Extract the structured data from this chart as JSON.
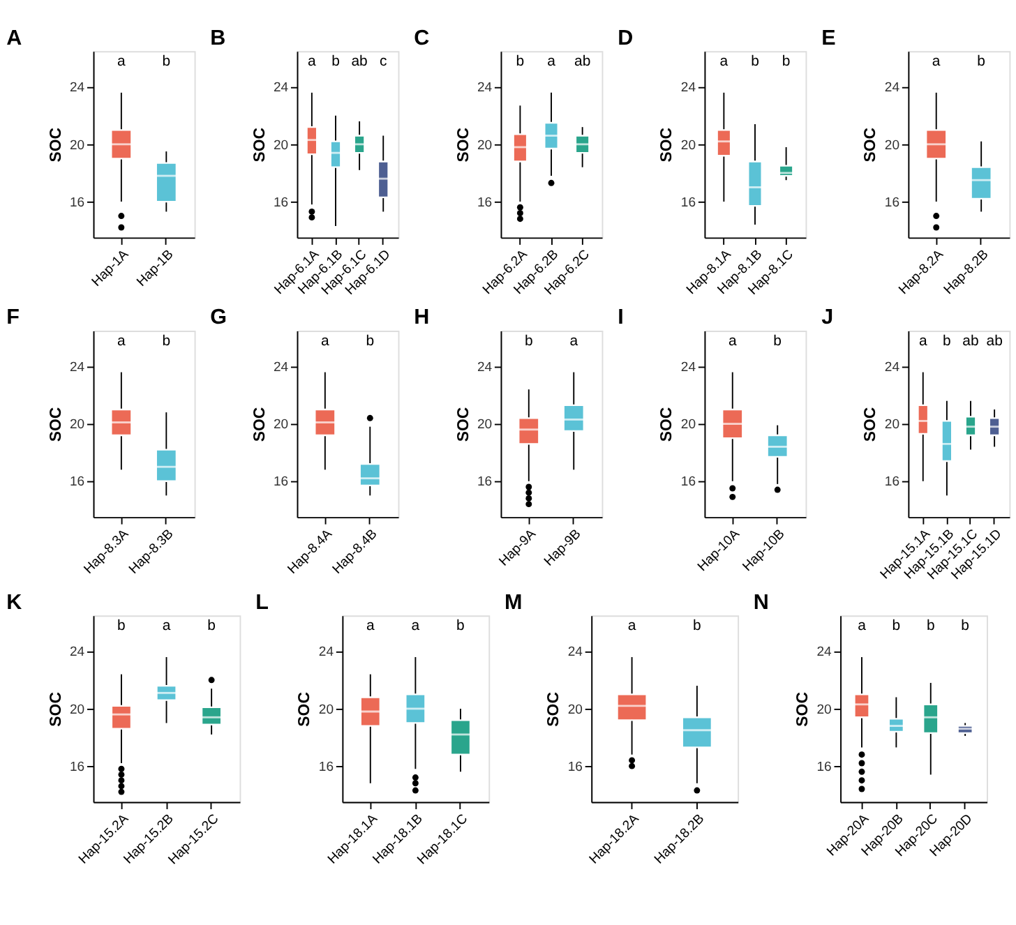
{
  "chart_data": [
    {
      "type": "box",
      "title": "A",
      "ylabel": "SOC",
      "ylim": [
        13.5,
        26.5
      ],
      "yticks": [
        16,
        20,
        24
      ],
      "grid": false,
      "categories": [
        "Hap-1A",
        "Hap-1B"
      ],
      "colors": [
        "#ec6a56",
        "#5bc2d6"
      ],
      "boxes": [
        {
          "low": 16,
          "q1": 19,
          "median": 20,
          "q3": 21,
          "high": 23.6,
          "outliers": [
            15,
            14.2
          ]
        },
        {
          "low": 15.3,
          "q1": 16,
          "median": 17.8,
          "q3": 18.7,
          "high": 19.5
        }
      ],
      "annotations": [
        "a",
        "b"
      ]
    },
    {
      "type": "box",
      "title": "B",
      "ylabel": "SOC",
      "ylim": [
        13.5,
        26.5
      ],
      "yticks": [
        16,
        20,
        24
      ],
      "grid": false,
      "categories": [
        "Hap-6.1A",
        "Hap-6.1B",
        "Hap-6.1C",
        "Hap-6.1D"
      ],
      "colors": [
        "#ec6a56",
        "#5bc2d6",
        "#2aa58c",
        "#4e5f92"
      ],
      "boxes": [
        {
          "low": 15.8,
          "q1": 19.3,
          "median": 20.3,
          "q3": 21.2,
          "high": 23.6,
          "outliers": [
            15.3,
            14.9
          ]
        },
        {
          "low": 14.3,
          "q1": 18.4,
          "median": 19.4,
          "q3": 20.2,
          "high": 22
        },
        {
          "low": 18.2,
          "q1": 19.4,
          "median": 20,
          "q3": 20.6,
          "high": 21.6
        },
        {
          "low": 15.3,
          "q1": 16.3,
          "median": 17.6,
          "q3": 18.8,
          "high": 20.6
        }
      ],
      "annotations": [
        "a",
        "b",
        "ab",
        "c"
      ]
    },
    {
      "type": "box",
      "title": "C",
      "ylabel": "SOC",
      "ylim": [
        13.5,
        26.5
      ],
      "yticks": [
        16,
        20,
        24
      ],
      "grid": false,
      "categories": [
        "Hap-6.2A",
        "Hap-6.2B",
        "Hap-6.2C"
      ],
      "colors": [
        "#ec6a56",
        "#5bc2d6",
        "#2aa58c"
      ],
      "boxes": [
        {
          "low": 16,
          "q1": 18.8,
          "median": 19.8,
          "q3": 20.7,
          "high": 22.7,
          "outliers": [
            15.6,
            15.2,
            14.8
          ]
        },
        {
          "low": 17.8,
          "q1": 19.7,
          "median": 20.6,
          "q3": 21.5,
          "high": 23.6,
          "outliers": [
            17.3
          ]
        },
        {
          "low": 18.4,
          "q1": 19.4,
          "median": 20,
          "q3": 20.6,
          "high": 21.2
        }
      ],
      "annotations": [
        "b",
        "a",
        "ab"
      ]
    },
    {
      "type": "box",
      "title": "D",
      "ylabel": "SOC",
      "ylim": [
        13.5,
        26.5
      ],
      "yticks": [
        16,
        20,
        24
      ],
      "grid": false,
      "categories": [
        "Hap-8.1A",
        "Hap-8.1B",
        "Hap-8.1C"
      ],
      "colors": [
        "#ec6a56",
        "#5bc2d6",
        "#2aa58c"
      ],
      "boxes": [
        {
          "low": 16,
          "q1": 19.2,
          "median": 20.2,
          "q3": 21,
          "high": 23.6
        },
        {
          "low": 14.4,
          "q1": 15.7,
          "median": 17,
          "q3": 18.8,
          "high": 21.4
        },
        {
          "low": 17.5,
          "q1": 17.8,
          "median": 18,
          "q3": 18.5,
          "high": 19.8
        }
      ],
      "annotations": [
        "a",
        "b",
        "b"
      ]
    },
    {
      "type": "box",
      "title": "E",
      "ylabel": "SOC",
      "ylim": [
        13.5,
        26.5
      ],
      "yticks": [
        16,
        20,
        24
      ],
      "grid": false,
      "categories": [
        "Hap-8.2A",
        "Hap-8.2B"
      ],
      "colors": [
        "#ec6a56",
        "#5bc2d6"
      ],
      "boxes": [
        {
          "low": 16,
          "q1": 19,
          "median": 20,
          "q3": 21,
          "high": 23.6,
          "outliers": [
            15,
            14.2
          ]
        },
        {
          "low": 15.3,
          "q1": 16.2,
          "median": 17.5,
          "q3": 18.4,
          "high": 20.2
        }
      ],
      "annotations": [
        "a",
        "b"
      ]
    },
    {
      "type": "box",
      "title": "F",
      "ylabel": "SOC",
      "ylim": [
        13.5,
        26.5
      ],
      "yticks": [
        16,
        20,
        24
      ],
      "grid": false,
      "categories": [
        "Hap-8.3A",
        "Hap-8.3B"
      ],
      "colors": [
        "#ec6a56",
        "#5bc2d6"
      ],
      "boxes": [
        {
          "low": 16.8,
          "q1": 19.2,
          "median": 20.1,
          "q3": 21,
          "high": 23.6
        },
        {
          "low": 15,
          "q1": 16,
          "median": 17,
          "q3": 18.2,
          "high": 20.8
        }
      ],
      "annotations": [
        "a",
        "b"
      ]
    },
    {
      "type": "box",
      "title": "G",
      "ylabel": "SOC",
      "ylim": [
        13.5,
        26.5
      ],
      "yticks": [
        16,
        20,
        24
      ],
      "grid": false,
      "categories": [
        "Hap-8.4A",
        "Hap-8.4B"
      ],
      "colors": [
        "#ec6a56",
        "#5bc2d6"
      ],
      "boxes": [
        {
          "low": 16.8,
          "q1": 19.2,
          "median": 20.1,
          "q3": 21,
          "high": 23.6
        },
        {
          "low": 15,
          "q1": 15.7,
          "median": 16.2,
          "q3": 17.2,
          "high": 19.8,
          "outliers": [
            20.4
          ]
        }
      ],
      "annotations": [
        "a",
        "b"
      ]
    },
    {
      "type": "box",
      "title": "H",
      "ylabel": "SOC",
      "ylim": [
        13.5,
        26.5
      ],
      "yticks": [
        16,
        20,
        24
      ],
      "grid": false,
      "categories": [
        "Hap-9A",
        "Hap-9B"
      ],
      "colors": [
        "#ec6a56",
        "#5bc2d6"
      ],
      "boxes": [
        {
          "low": 16,
          "q1": 18.6,
          "median": 19.6,
          "q3": 20.4,
          "high": 22.4,
          "outliers": [
            15.6,
            15.2,
            14.8,
            14.4
          ]
        },
        {
          "low": 16.8,
          "q1": 19.5,
          "median": 20.3,
          "q3": 21.3,
          "high": 23.6
        }
      ],
      "annotations": [
        "b",
        "a"
      ]
    },
    {
      "type": "box",
      "title": "I",
      "ylabel": "SOC",
      "ylim": [
        13.5,
        26.5
      ],
      "yticks": [
        16,
        20,
        24
      ],
      "grid": false,
      "categories": [
        "Hap-10A",
        "Hap-10B"
      ],
      "colors": [
        "#ec6a56",
        "#5bc2d6"
      ],
      "boxes": [
        {
          "low": 16,
          "q1": 19,
          "median": 20,
          "q3": 21,
          "high": 23.6,
          "outliers": [
            15.5,
            14.9
          ]
        },
        {
          "low": 15.8,
          "q1": 17.7,
          "median": 18.4,
          "q3": 19.2,
          "high": 19.9,
          "outliers": [
            15.4
          ]
        }
      ],
      "annotations": [
        "a",
        "b"
      ]
    },
    {
      "type": "box",
      "title": "J",
      "ylabel": "SOC",
      "ylim": [
        13.5,
        26.5
      ],
      "yticks": [
        16,
        20,
        24
      ],
      "grid": false,
      "categories": [
        "Hap-15.1A",
        "Hap-15.1B",
        "Hap-15.1C",
        "Hap-15.1D"
      ],
      "colors": [
        "#ec6a56",
        "#5bc2d6",
        "#2aa58c",
        "#4e5f92"
      ],
      "boxes": [
        {
          "low": 16,
          "q1": 19.3,
          "median": 20.2,
          "q3": 21.3,
          "high": 23.6
        },
        {
          "low": 15,
          "q1": 17.4,
          "median": 18.6,
          "q3": 20.2,
          "high": 21.6
        },
        {
          "low": 18.2,
          "q1": 19.2,
          "median": 19.8,
          "q3": 20.5,
          "high": 21.6
        },
        {
          "low": 18.4,
          "q1": 19.2,
          "median": 19.8,
          "q3": 20.4,
          "high": 21
        }
      ],
      "annotations": [
        "a",
        "b",
        "ab",
        "ab"
      ]
    },
    {
      "type": "box",
      "title": "K",
      "ylabel": "SOC",
      "ylim": [
        13.5,
        26.5
      ],
      "yticks": [
        16,
        20,
        24
      ],
      "grid": false,
      "categories": [
        "Hap-15.2A",
        "Hap-15.2B",
        "Hap-15.2C"
      ],
      "colors": [
        "#ec6a56",
        "#5bc2d6",
        "#2aa58c"
      ],
      "boxes": [
        {
          "low": 16.2,
          "q1": 18.6,
          "median": 19.6,
          "q3": 20.2,
          "high": 22.4,
          "outliers": [
            15.8,
            15.4,
            15,
            14.6,
            14.2
          ]
        },
        {
          "low": 19,
          "q1": 20.6,
          "median": 21.1,
          "q3": 21.6,
          "high": 23.6
        },
        {
          "low": 18.2,
          "q1": 18.9,
          "median": 19.4,
          "q3": 20.1,
          "high": 21.4,
          "outliers": [
            22
          ]
        }
      ],
      "annotations": [
        "b",
        "a",
        "b"
      ]
    },
    {
      "type": "box",
      "title": "L",
      "ylabel": "SOC",
      "ylim": [
        13.5,
        26.5
      ],
      "yticks": [
        16,
        20,
        24
      ],
      "grid": false,
      "categories": [
        "Hap-18.1A",
        "Hap-18.1B",
        "Hap-18.1C"
      ],
      "colors": [
        "#ec6a56",
        "#5bc2d6",
        "#2aa58c"
      ],
      "boxes": [
        {
          "low": 14.8,
          "q1": 18.8,
          "median": 19.8,
          "q3": 20.8,
          "high": 22.4
        },
        {
          "low": 15.8,
          "q1": 19,
          "median": 20,
          "q3": 21,
          "high": 23.6,
          "outliers": [
            15.2,
            14.8,
            14.3
          ]
        },
        {
          "low": 15.6,
          "q1": 16.8,
          "median": 18.2,
          "q3": 19.2,
          "high": 20
        }
      ],
      "annotations": [
        "a",
        "a",
        "b"
      ]
    },
    {
      "type": "box",
      "title": "M",
      "ylabel": "SOC",
      "ylim": [
        13.5,
        26.5
      ],
      "yticks": [
        16,
        20,
        24
      ],
      "grid": false,
      "categories": [
        "Hap-18.2A",
        "Hap-18.2B"
      ],
      "colors": [
        "#ec6a56",
        "#5bc2d6"
      ],
      "boxes": [
        {
          "low": 16.8,
          "q1": 19.2,
          "median": 20.2,
          "q3": 21,
          "high": 23.6,
          "outliers": [
            16.4,
            16
          ]
        },
        {
          "low": 14.8,
          "q1": 17.3,
          "median": 18.5,
          "q3": 19.4,
          "high": 21.6,
          "outliers": [
            14.3
          ]
        }
      ],
      "annotations": [
        "a",
        "b"
      ]
    },
    {
      "type": "box",
      "title": "N",
      "ylabel": "SOC",
      "ylim": [
        13.5,
        26.5
      ],
      "yticks": [
        16,
        20,
        24
      ],
      "grid": false,
      "categories": [
        "Hap-20A",
        "Hap-20B",
        "Hap-20C",
        "Hap-20D"
      ],
      "colors": [
        "#ec6a56",
        "#5bc2d6",
        "#2aa58c",
        "#4e5f92"
      ],
      "boxes": [
        {
          "low": 17.3,
          "q1": 19.4,
          "median": 20.3,
          "q3": 21,
          "high": 23.6,
          "outliers": [
            16.8,
            16.2,
            15.6,
            15,
            14.4
          ]
        },
        {
          "low": 17.3,
          "q1": 18.4,
          "median": 18.8,
          "q3": 19.3,
          "high": 20.8
        },
        {
          "low": 15.4,
          "q1": 18.3,
          "median": 19.4,
          "q3": 20.3,
          "high": 21.8
        },
        {
          "low": 18.1,
          "q1": 18.3,
          "median": 18.6,
          "q3": 18.8,
          "high": 19
        }
      ],
      "annotations": [
        "a",
        "b",
        "b",
        "b"
      ]
    }
  ]
}
